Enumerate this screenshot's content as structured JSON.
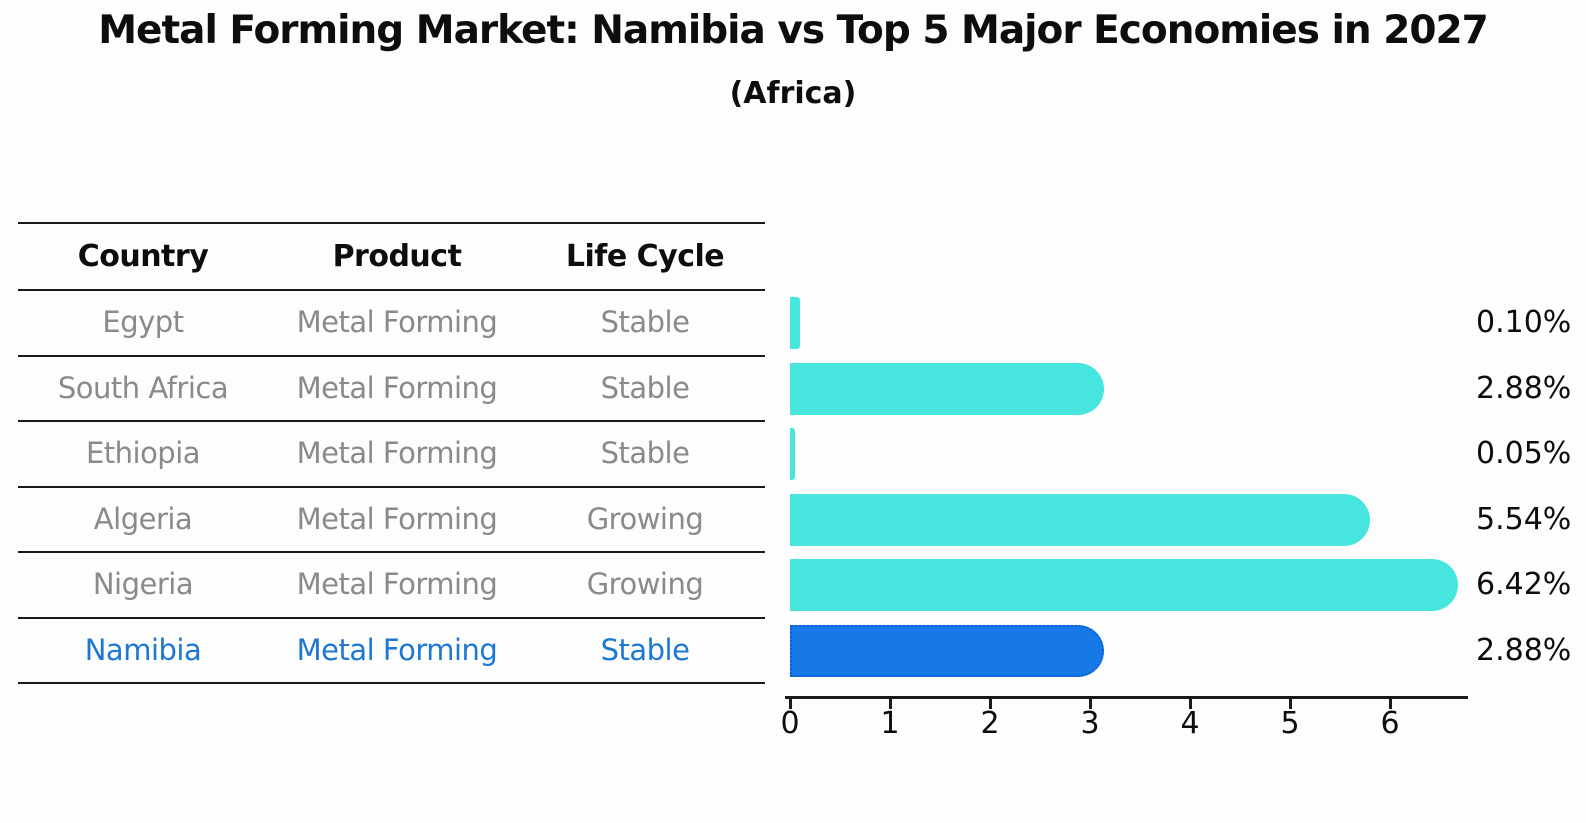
{
  "header": {
    "title": "Metal Forming Market: Namibia vs Top 5 Major Economies in 2027",
    "subtitle": "(Africa)"
  },
  "table": {
    "headers": [
      "Country",
      "Product",
      "Life Cycle"
    ],
    "rows": [
      {
        "country": "Egypt",
        "product": "Metal Forming",
        "life_cycle": "Stable",
        "highlighted": false
      },
      {
        "country": "South Africa",
        "product": "Metal Forming",
        "life_cycle": "Stable",
        "highlighted": false
      },
      {
        "country": "Ethiopia",
        "product": "Metal Forming",
        "life_cycle": "Stable",
        "highlighted": false
      },
      {
        "country": "Algeria",
        "product": "Metal Forming",
        "life_cycle": "Growing",
        "highlighted": false
      },
      {
        "country": "Nigeria",
        "product": "Metal Forming",
        "life_cycle": "Growing",
        "highlighted": false
      },
      {
        "country": "Namibia",
        "product": "Metal Forming",
        "life_cycle": "Stable",
        "highlighted": true
      }
    ]
  },
  "chart_data": {
    "type": "bar",
    "orientation": "horizontal",
    "title": "Metal Forming Market: Namibia vs Top 5 Major Economies in 2027",
    "subtitle": "(Africa)",
    "categories": [
      "Egypt",
      "South Africa",
      "Ethiopia",
      "Algeria",
      "Nigeria",
      "Namibia"
    ],
    "values": [
      0.1,
      2.88,
      0.05,
      5.54,
      6.42,
      2.88
    ],
    "value_labels": [
      "0.10%",
      "2.88%",
      "0.05%",
      "5.54%",
      "6.42%",
      "2.88%"
    ],
    "x_ticks": [
      0,
      1,
      2,
      3,
      4,
      5,
      6
    ],
    "xlim": [
      0,
      6.8
    ],
    "grid": false,
    "legend": false,
    "bar_color": "#46E5DE",
    "highlight_bar_color": "#1778E8",
    "highlight_border_color": "#0F5FD7",
    "highlight_index": 5,
    "highlight_category": "Namibia"
  }
}
